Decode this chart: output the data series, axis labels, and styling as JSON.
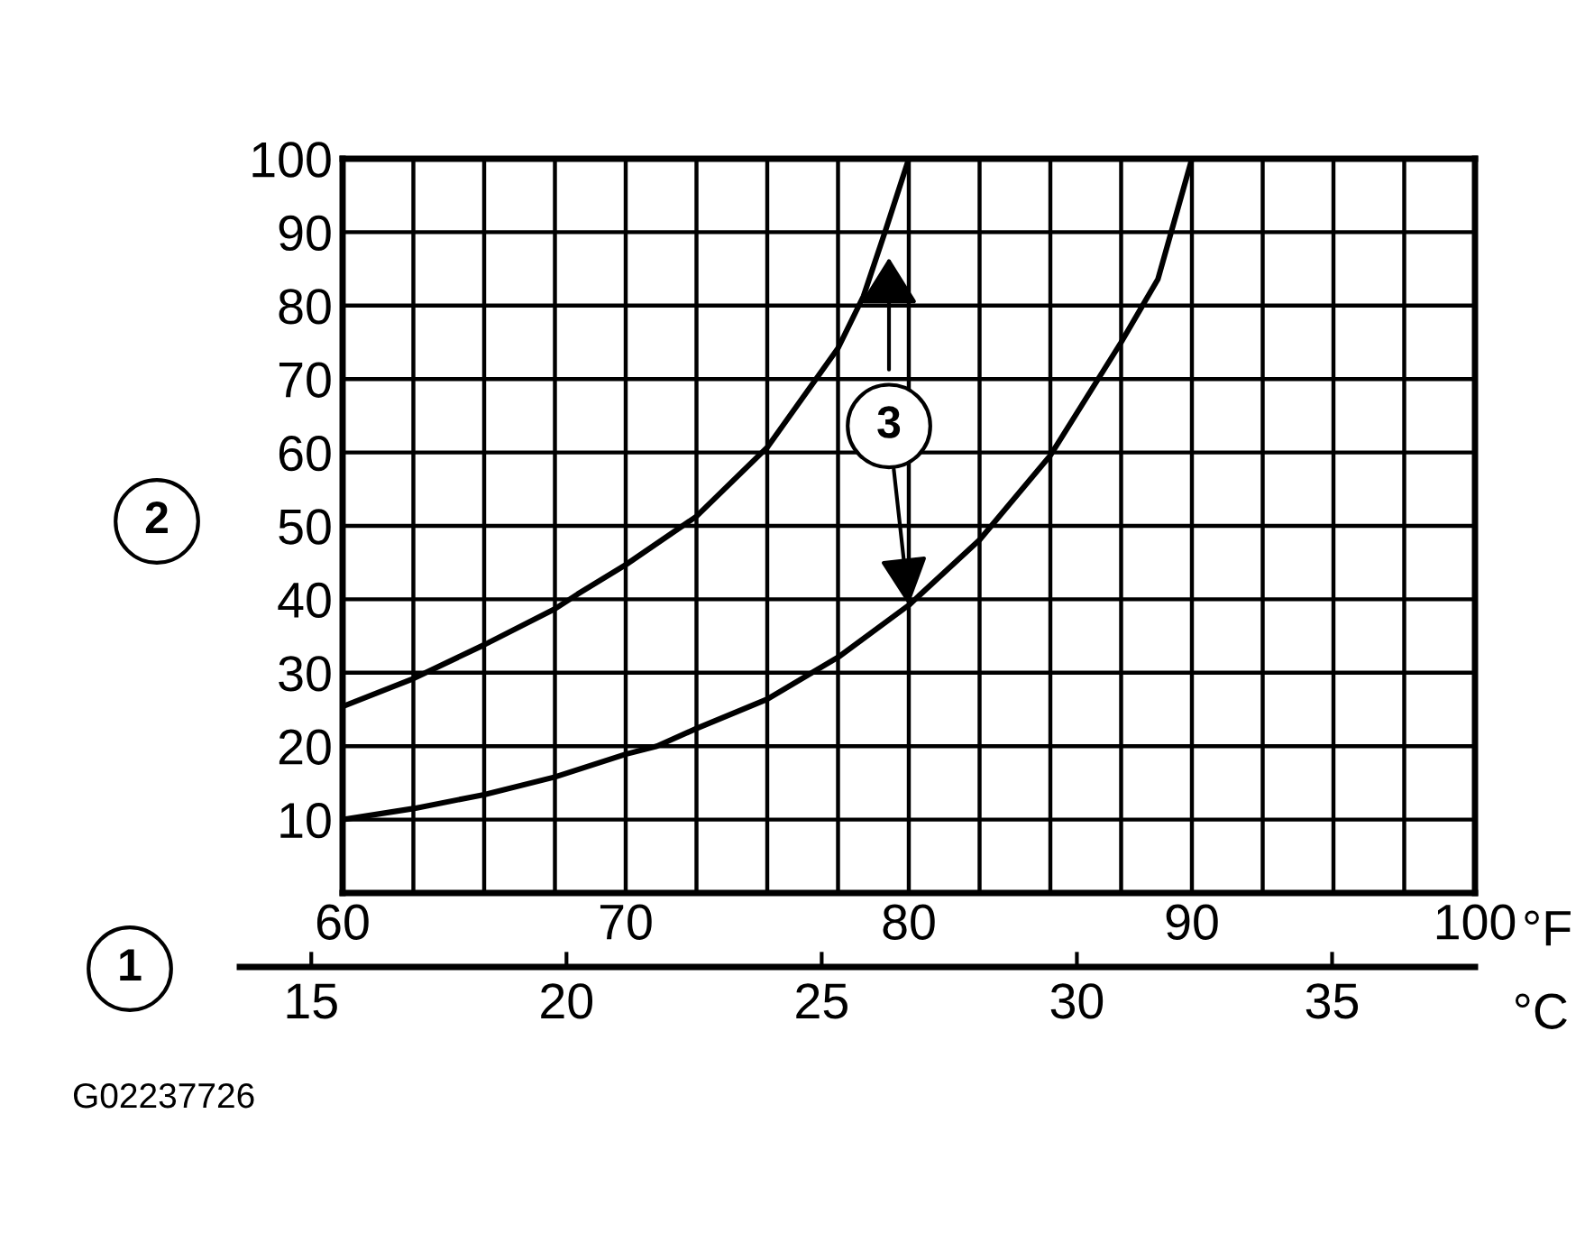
{
  "chart_data": {
    "type": "line",
    "xlabel": "°F",
    "x2label": "°C",
    "series": [
      {
        "color": "#000000",
        "x": [
          60,
          62.5,
          65,
          67.5,
          68.3,
          70,
          72.5,
          75,
          77.5,
          78.4,
          79.2,
          80
        ],
        "values": [
          25.4,
          29.2,
          33.8,
          38.7,
          40.7,
          44.7,
          51.3,
          60.7,
          74.2,
          81.3,
          90.5,
          100
        ]
      },
      {
        "color": "#000000",
        "x": [
          60,
          62.5,
          65,
          67.5,
          70,
          71.1,
          72.5,
          75,
          77.5,
          80,
          82.5,
          85,
          87.5,
          88.8,
          90
        ],
        "values": [
          10,
          11.5,
          13.4,
          15.8,
          18.9,
          20,
          22.4,
          26.4,
          32.1,
          39.2,
          48.1,
          59.6,
          75.0,
          83.6,
          100
        ]
      }
    ],
    "xlim": [
      60,
      100
    ],
    "ylim": [
      0,
      100
    ],
    "xticks": [
      60,
      {
        "value": 62.5,
        "label": null
      },
      {
        "value": 65,
        "label": null
      },
      {
        "value": 67.5,
        "label": null
      },
      70,
      {
        "value": 72.5,
        "label": null
      },
      {
        "value": 75,
        "label": null
      },
      {
        "value": 77.5,
        "label": null
      },
      80,
      {
        "value": 82.5,
        "label": null
      },
      {
        "value": 85,
        "label": null
      },
      {
        "value": 87.5,
        "label": null
      },
      90,
      {
        "value": 92.5,
        "label": null
      },
      {
        "value": 95,
        "label": null
      },
      {
        "value": 97.5,
        "label": null
      },
      100
    ],
    "yticks": [
      10,
      20,
      30,
      40,
      50,
      60,
      70,
      80,
      90,
      100
    ],
    "x2lim": [
      13.6,
      37.8
    ],
    "x2ticks": [
      15,
      20,
      25,
      30,
      35
    ],
    "grid": true,
    "legend": false,
    "marker": "none",
    "line_style": "solid",
    "annotations": [
      "1",
      "2",
      {
        "text": "3",
        "x": 80,
        "y": 39.2
      },
      "G02237726"
    ]
  }
}
